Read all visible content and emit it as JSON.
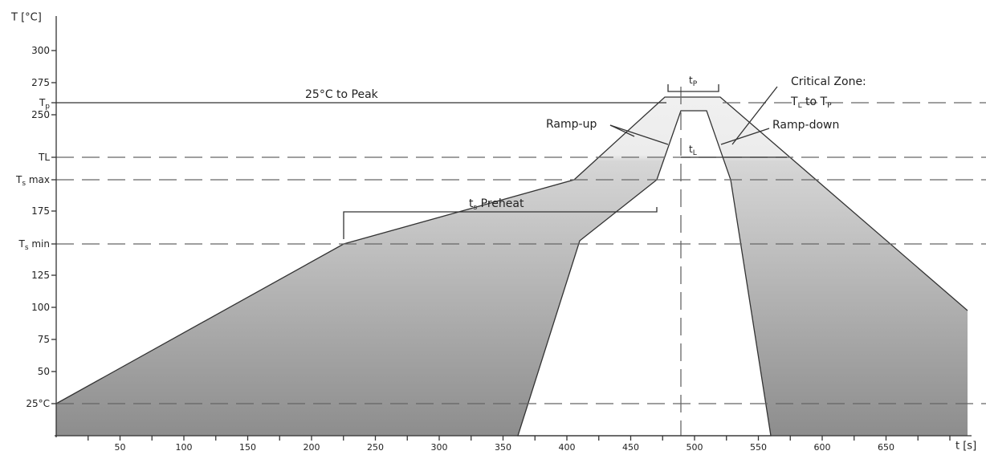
{
  "axes": {
    "y_label": "T [°C]",
    "x_label": "t [s]",
    "y_ticks": [
      [
        "300"
      ],
      [
        "275"
      ],
      [
        "T",
        "p"
      ],
      [
        "250"
      ],
      [
        "TL"
      ],
      [
        "T",
        "s",
        " max"
      ],
      [
        "175"
      ],
      [
        "T",
        "s",
        " min"
      ],
      [
        "125"
      ],
      [
        "100"
      ],
      [
        "75"
      ],
      [
        "50"
      ],
      [
        "25°C"
      ]
    ],
    "x_ticks": [
      "50",
      "100",
      "150",
      "200",
      "250",
      "300",
      "350",
      "400",
      "450",
      "500",
      "550",
      "600",
      "650"
    ]
  },
  "annotations": {
    "peak": [
      "25°C to Peak"
    ],
    "tp": [
      "t",
      "P"
    ],
    "critical_1": [
      "Critical Zone:"
    ],
    "critical_2": [
      "T",
      "L",
      " to T",
      "P"
    ],
    "ramp_up": [
      "Ramp-up"
    ],
    "ramp_down": [
      "Ramp-down"
    ],
    "tl": [
      "t",
      "L"
    ],
    "preheat": [
      "t",
      "s",
      " Preheat"
    ]
  }
}
